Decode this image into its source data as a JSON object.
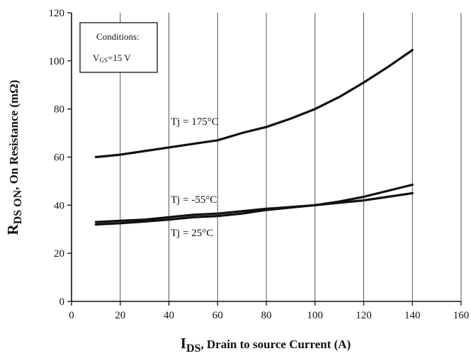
{
  "chart_data": {
    "type": "line",
    "xlabel": "I",
    "xlabel_sub": "DS",
    "xlabel_rest": ", Drain to source Current (A)",
    "ylabel": "R",
    "ylabel_sub": "DS ON",
    "ylabel_rest": ", On Resistance (mΩ)",
    "xlim": [
      0,
      160
    ],
    "ylim": [
      0,
      120
    ],
    "x_ticks": [
      0,
      20,
      40,
      60,
      80,
      100,
      120,
      140,
      160
    ],
    "y_ticks": [
      0,
      20,
      40,
      60,
      80,
      100,
      120
    ],
    "grid": true,
    "conditions": {
      "title": "Conditions:",
      "v_label": "V",
      "v_sub": "GS",
      "v_value": "=15 V"
    },
    "series": [
      {
        "name": "Tj = 175°C",
        "x": [
          10,
          20,
          30,
          40,
          50,
          60,
          70,
          80,
          90,
          100,
          110,
          120,
          130,
          140
        ],
        "values": [
          60,
          61,
          62.5,
          64,
          65.5,
          67,
          70,
          72.5,
          76,
          80,
          85,
          91,
          97.5,
          104.5
        ]
      },
      {
        "name": "Tj = -55°C",
        "x": [
          10,
          20,
          30,
          40,
          50,
          60,
          70,
          80,
          90,
          100,
          110,
          120,
          130,
          140
        ],
        "values": [
          33,
          33.5,
          34,
          35,
          36,
          36.5,
          37.5,
          38.5,
          39.2,
          40,
          41,
          42,
          43.5,
          45
        ]
      },
      {
        "name": "Tj = 25°C",
        "x": [
          10,
          20,
          30,
          40,
          50,
          60,
          70,
          80,
          90,
          100,
          110,
          120,
          130,
          140
        ],
        "values": [
          32,
          32.5,
          33.2,
          34,
          35,
          35.5,
          36.5,
          38,
          39,
          40,
          41.5,
          43.5,
          46,
          48.5
        ]
      }
    ],
    "annotations": [
      "Tj = 175°C",
      "Tj = -55°C",
      "Tj = 25°C"
    ]
  }
}
